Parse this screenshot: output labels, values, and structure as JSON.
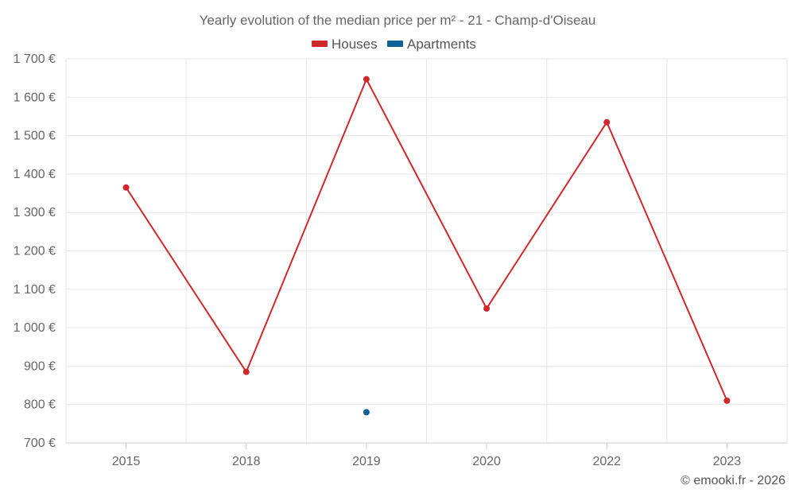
{
  "chart_data": {
    "type": "line",
    "title": "Yearly evolution of the median price per m² - 21 - Champ-d'Oiseau",
    "categories": [
      "2015",
      "2018",
      "2019",
      "2020",
      "2022",
      "2023"
    ],
    "series": [
      {
        "name": "Houses",
        "color": "#d0282d",
        "values": [
          1365,
          885,
          1647,
          1050,
          1535,
          810
        ]
      },
      {
        "name": "Apartments",
        "color": "#0e6298",
        "values": [
          null,
          null,
          780,
          null,
          null,
          null
        ]
      }
    ],
    "ylim": [
      700,
      1700
    ],
    "yticks": [
      700,
      800,
      900,
      1000,
      1100,
      1200,
      1300,
      1400,
      1500,
      1600,
      1700
    ],
    "ytick_labels": [
      "700 €",
      "800 €",
      "900 €",
      "1 000 €",
      "1 100 €",
      "1 200 €",
      "1 300 €",
      "1 400 €",
      "1 500 €",
      "1 600 €",
      "1 700 €"
    ],
    "xlabel": "",
    "ylabel": "",
    "grid": true,
    "legend_position": "top-center"
  },
  "credit": "© emooki.fr - 2026"
}
